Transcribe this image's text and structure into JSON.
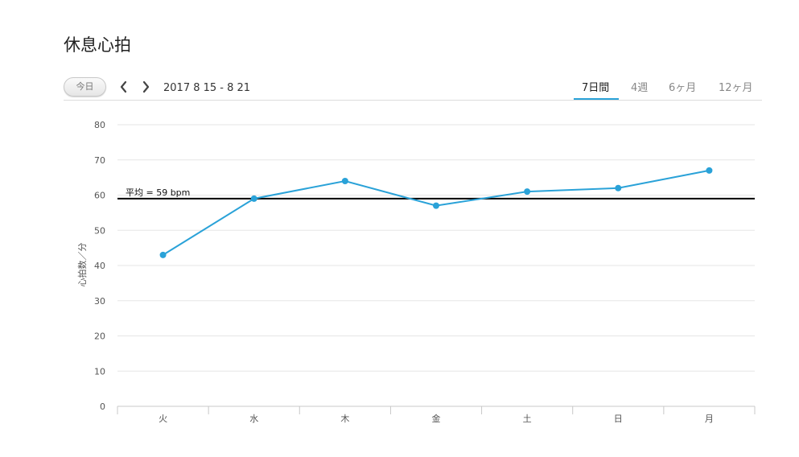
{
  "page": {
    "title": "休息心拍"
  },
  "toolbar": {
    "today_label": "今日",
    "date_range": "2017 8 15 - 8 21",
    "tabs": [
      {
        "label": "7日間",
        "active": true
      },
      {
        "label": "4週",
        "active": false
      },
      {
        "label": "6ヶ月",
        "active": false
      },
      {
        "label": "12ヶ月",
        "active": false
      }
    ],
    "prev_icon": "chevron-left-icon",
    "next_icon": "chevron-right-icon"
  },
  "colors": {
    "accent": "#2aa2d8",
    "series": "#2aa2d8",
    "average_line": "#000000",
    "grid": "#e6e6e6"
  },
  "chart_data": {
    "type": "line",
    "title": "",
    "xlabel": "",
    "ylabel": "心拍数／分",
    "ylim": [
      0,
      80
    ],
    "yticks": [
      0,
      10,
      20,
      30,
      40,
      50,
      60,
      70,
      80
    ],
    "categories": [
      "火",
      "水",
      "木",
      "金",
      "土",
      "日",
      "月"
    ],
    "series": [
      {
        "values": [
          43,
          59,
          64,
          57,
          61,
          62,
          67
        ]
      }
    ],
    "average": {
      "value": 59,
      "label": "平均 = 59 bpm"
    },
    "grid": true,
    "legend": "none"
  }
}
